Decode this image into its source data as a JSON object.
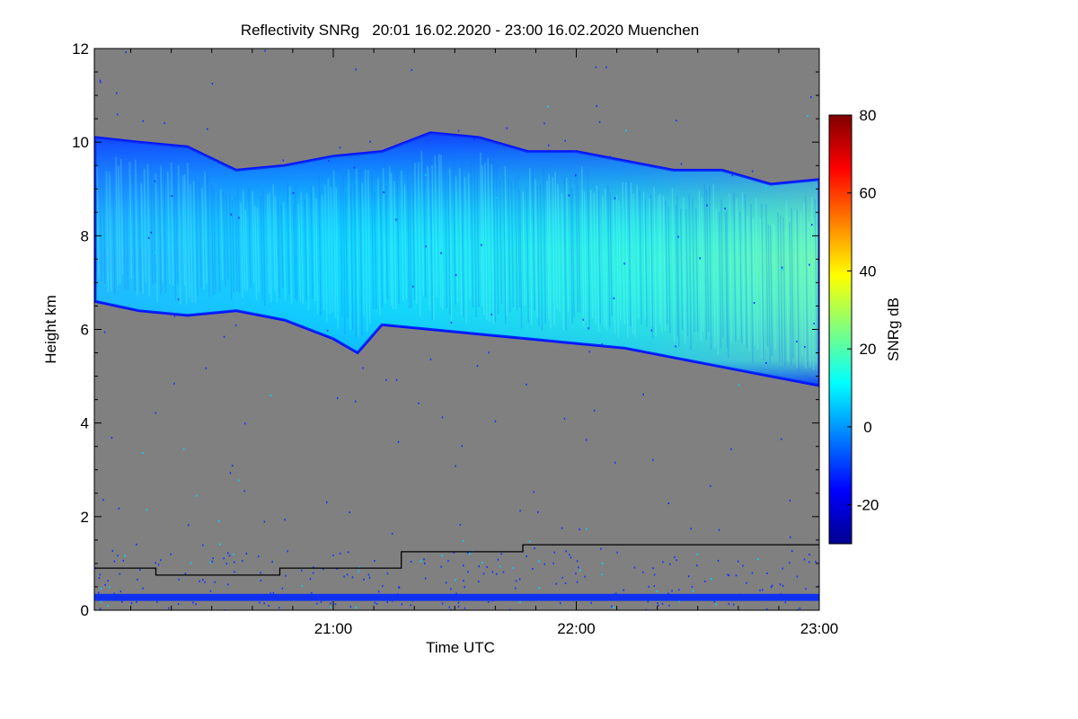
{
  "chart_data": {
    "type": "heatmap",
    "title": "Reflectivity SNRg   20:01 16.02.2020 - 23:00 16.02.2020 Muenchen",
    "xlabel": "Time UTC",
    "ylabel": "Height km",
    "xlim_hours": [
      20.0167,
      23.0
    ],
    "ylim_km": [
      0,
      12
    ],
    "x_ticks": [
      {
        "label": "21:00",
        "hour": 21.0
      },
      {
        "label": "22:00",
        "hour": 22.0
      },
      {
        "label": "23:00",
        "hour": 23.0
      }
    ],
    "y_ticks": [
      0,
      2,
      4,
      6,
      8,
      10,
      12
    ],
    "colorbar": {
      "label": "SNRg dB",
      "range": [
        -30,
        80
      ],
      "ticks": [
        -20,
        0,
        20,
        40,
        60,
        80
      ],
      "colormap": "jet"
    },
    "background_color": "#808080",
    "cloud_layer": {
      "description": "ice cloud band",
      "top_km": [
        [
          20.02,
          10.1
        ],
        [
          20.2,
          10.0
        ],
        [
          20.4,
          9.9
        ],
        [
          20.6,
          9.4
        ],
        [
          20.8,
          9.5
        ],
        [
          21.0,
          9.7
        ],
        [
          21.2,
          9.8
        ],
        [
          21.4,
          10.2
        ],
        [
          21.6,
          10.1
        ],
        [
          21.8,
          9.8
        ],
        [
          22.0,
          9.8
        ],
        [
          22.2,
          9.6
        ],
        [
          22.4,
          9.4
        ],
        [
          22.6,
          9.4
        ],
        [
          22.8,
          9.1
        ],
        [
          23.0,
          9.2
        ]
      ],
      "base_km": [
        [
          20.02,
          6.6
        ],
        [
          20.2,
          6.4
        ],
        [
          20.4,
          6.3
        ],
        [
          20.6,
          6.4
        ],
        [
          20.8,
          6.2
        ],
        [
          21.0,
          5.8
        ],
        [
          21.1,
          5.5
        ],
        [
          21.2,
          6.1
        ],
        [
          21.4,
          6.0
        ],
        [
          21.6,
          5.9
        ],
        [
          21.8,
          5.8
        ],
        [
          22.0,
          5.7
        ],
        [
          22.2,
          5.6
        ],
        [
          22.4,
          5.4
        ],
        [
          22.6,
          5.2
        ],
        [
          22.8,
          5.0
        ],
        [
          23.0,
          4.8
        ]
      ],
      "peak_snr_db": 25
    },
    "boundary_layer_line_km": [
      [
        20.02,
        0.9
      ],
      [
        20.27,
        0.9
      ],
      [
        20.27,
        0.75
      ],
      [
        20.78,
        0.75
      ],
      [
        20.78,
        0.9
      ],
      [
        21.28,
        0.9
      ],
      [
        21.28,
        1.25
      ],
      [
        21.78,
        1.25
      ],
      [
        21.78,
        1.4
      ],
      [
        23.0,
        1.4
      ]
    ],
    "ground_clutter_band_km": [
      0.2,
      0.35
    ]
  }
}
